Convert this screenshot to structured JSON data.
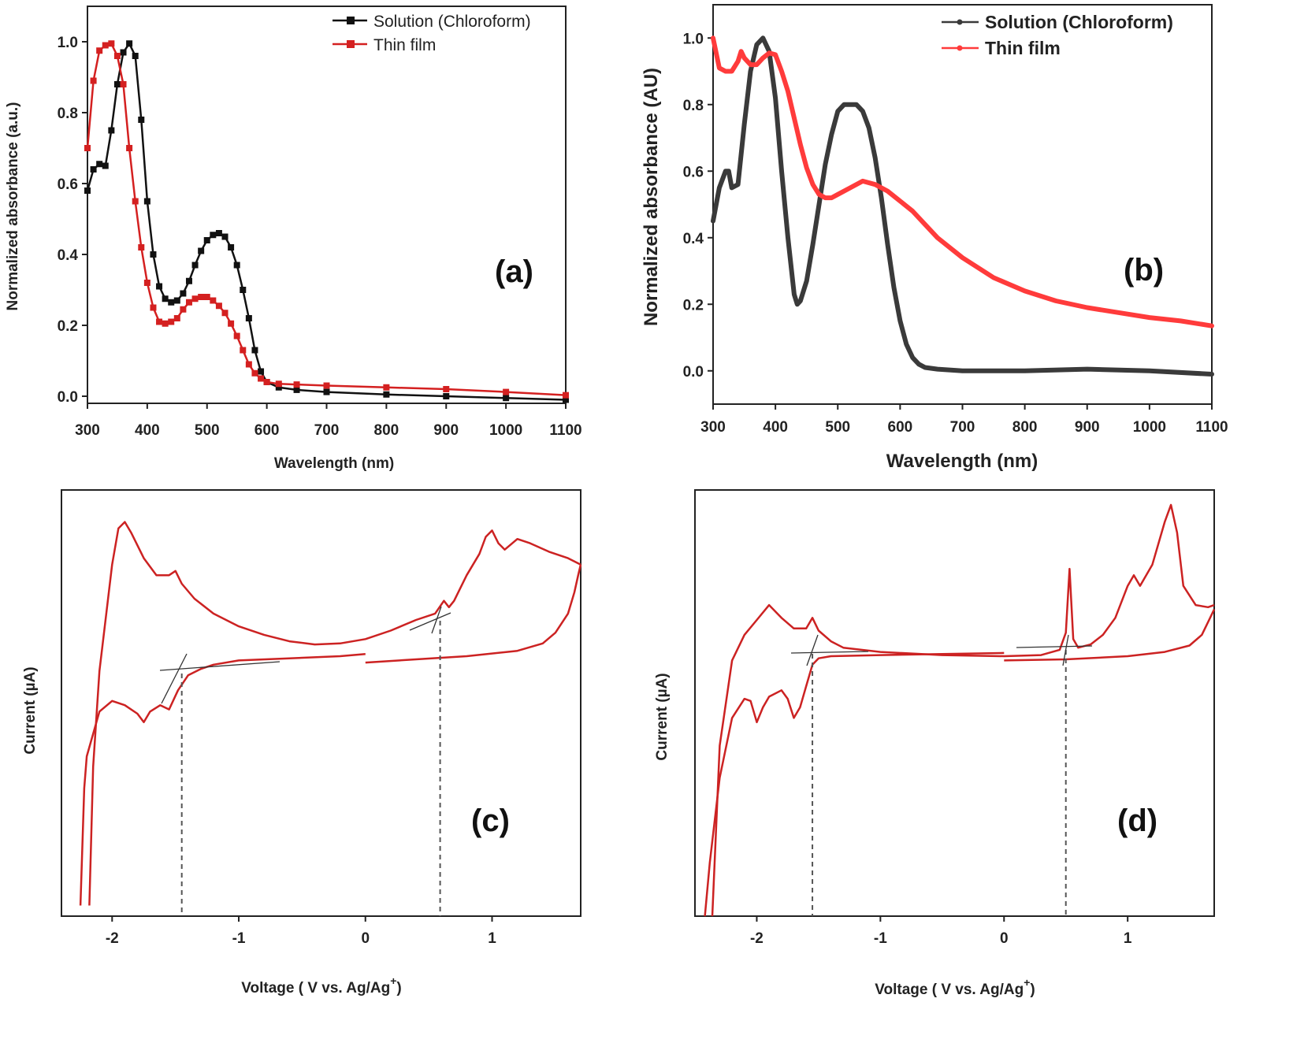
{
  "colors": {
    "solution_a": "#111111",
    "film_a": "#d42020",
    "solution_b": "#3a3a3a",
    "film_b": "#ff3b3b",
    "cv": "#cc2222",
    "tangent": "#333333",
    "dashed": "#555555"
  },
  "chart_data": [
    {
      "id": "a",
      "type": "line",
      "panel_label": "(a)",
      "xlabel": "Wavelength (nm)",
      "ylabel": "Normalized absorbance (a.u.)",
      "xlim": [
        300,
        1100
      ],
      "ylim": [
        -0.02,
        1.1
      ],
      "xticks": [
        300,
        400,
        500,
        600,
        700,
        800,
        900,
        1000,
        1100
      ],
      "yticks": [
        0.0,
        0.2,
        0.4,
        0.6,
        0.8,
        1.0
      ],
      "ytick_labels": [
        "0.0",
        "0.2",
        "0.4",
        "0.6",
        "0.8",
        "1.0"
      ],
      "legend_position": "top-right",
      "series": [
        {
          "name": "Solution (Chloroform)",
          "marker": "square",
          "x": [
            300,
            310,
            320,
            330,
            340,
            350,
            360,
            370,
            380,
            390,
            400,
            410,
            420,
            430,
            440,
            450,
            460,
            470,
            480,
            490,
            500,
            510,
            520,
            530,
            540,
            550,
            560,
            570,
            580,
            590,
            600,
            620,
            650,
            700,
            800,
            900,
            1000,
            1100
          ],
          "y": [
            0.58,
            0.64,
            0.655,
            0.65,
            0.75,
            0.88,
            0.97,
            0.995,
            0.96,
            0.78,
            0.55,
            0.4,
            0.31,
            0.275,
            0.265,
            0.27,
            0.29,
            0.325,
            0.37,
            0.41,
            0.44,
            0.455,
            0.46,
            0.45,
            0.42,
            0.37,
            0.3,
            0.22,
            0.13,
            0.07,
            0.04,
            0.025,
            0.018,
            0.012,
            0.005,
            0.0,
            -0.005,
            -0.01
          ]
        },
        {
          "name": "Thin film",
          "marker": "square",
          "x": [
            300,
            310,
            320,
            330,
            340,
            350,
            360,
            370,
            380,
            390,
            400,
            410,
            420,
            430,
            440,
            450,
            460,
            470,
            480,
            490,
            500,
            510,
            520,
            530,
            540,
            550,
            560,
            570,
            580,
            590,
            600,
            620,
            650,
            700,
            800,
            900,
            1000,
            1100
          ],
          "y": [
            0.7,
            0.89,
            0.975,
            0.99,
            0.995,
            0.96,
            0.88,
            0.7,
            0.55,
            0.42,
            0.32,
            0.25,
            0.21,
            0.205,
            0.21,
            0.22,
            0.245,
            0.265,
            0.275,
            0.28,
            0.28,
            0.27,
            0.255,
            0.235,
            0.205,
            0.17,
            0.13,
            0.09,
            0.065,
            0.05,
            0.04,
            0.035,
            0.033,
            0.03,
            0.025,
            0.02,
            0.012,
            0.003
          ]
        }
      ]
    },
    {
      "id": "b",
      "type": "line",
      "panel_label": "(b)",
      "xlabel": "Wavelength (nm)",
      "ylabel": "Normalized absorbance (AU)",
      "xlim": [
        300,
        1100
      ],
      "ylim": [
        -0.1,
        1.1
      ],
      "xticks": [
        300,
        400,
        500,
        600,
        700,
        800,
        900,
        1000,
        1100
      ],
      "yticks": [
        0.0,
        0.2,
        0.4,
        0.6,
        0.8,
        1.0
      ],
      "ytick_labels": [
        "0.0",
        "0.2",
        "0.4",
        "0.6",
        "0.8",
        "1.0"
      ],
      "legend_position": "top-right",
      "series": [
        {
          "name": "Solution (Chloroform)",
          "x": [
            300,
            310,
            320,
            325,
            330,
            340,
            350,
            360,
            370,
            380,
            390,
            400,
            410,
            420,
            430,
            435,
            440,
            450,
            460,
            470,
            480,
            490,
            500,
            510,
            520,
            530,
            540,
            550,
            560,
            570,
            580,
            590,
            600,
            610,
            620,
            630,
            640,
            660,
            700,
            800,
            900,
            1000,
            1100
          ],
          "y": [
            0.45,
            0.55,
            0.6,
            0.6,
            0.55,
            0.56,
            0.74,
            0.9,
            0.98,
            1.0,
            0.96,
            0.82,
            0.6,
            0.4,
            0.23,
            0.2,
            0.21,
            0.27,
            0.38,
            0.5,
            0.62,
            0.71,
            0.78,
            0.8,
            0.8,
            0.8,
            0.78,
            0.73,
            0.64,
            0.52,
            0.38,
            0.25,
            0.15,
            0.08,
            0.04,
            0.02,
            0.01,
            0.005,
            0.0,
            0.0,
            0.005,
            0.0,
            -0.01
          ]
        },
        {
          "name": "Thin film",
          "x": [
            300,
            310,
            320,
            330,
            340,
            345,
            350,
            360,
            370,
            380,
            390,
            400,
            410,
            420,
            430,
            440,
            450,
            460,
            470,
            480,
            490,
            500,
            520,
            540,
            560,
            580,
            600,
            620,
            640,
            660,
            700,
            750,
            800,
            850,
            900,
            950,
            1000,
            1050,
            1100
          ],
          "y": [
            1.0,
            0.91,
            0.9,
            0.9,
            0.93,
            0.96,
            0.94,
            0.92,
            0.92,
            0.94,
            0.955,
            0.95,
            0.9,
            0.84,
            0.76,
            0.68,
            0.61,
            0.56,
            0.53,
            0.52,
            0.52,
            0.53,
            0.55,
            0.57,
            0.56,
            0.54,
            0.51,
            0.48,
            0.44,
            0.4,
            0.34,
            0.28,
            0.24,
            0.21,
            0.19,
            0.175,
            0.16,
            0.15,
            0.135
          ]
        }
      ]
    },
    {
      "id": "c",
      "type": "line",
      "panel_label": "(c)",
      "xlabel_prefix": "Voltage ( V vs. Ag/Ag",
      "xlabel_sup": "+",
      "xlabel_suffix": ")",
      "ylabel": "Current (µA)",
      "xlim": [
        -2.4,
        1.7
      ],
      "ylim": [
        -10,
        10
      ],
      "xticks": [
        -2,
        -1,
        0,
        1
      ],
      "xtick_labels": [
        "-2",
        "-1",
        "0",
        "1"
      ],
      "onsets": [
        -1.45,
        0.59
      ],
      "series": [
        {
          "name": "",
          "x": [
            -2.18,
            -2.15,
            -2.1,
            -2.0,
            -1.95,
            -1.9,
            -1.85,
            -1.75,
            -1.65,
            -1.55,
            -1.5,
            -1.45,
            -1.35,
            -1.2,
            -1.0,
            -0.8,
            -0.6,
            -0.4,
            -0.2,
            0.0,
            0.2,
            0.4,
            0.55,
            0.62,
            0.66,
            0.7,
            0.8,
            0.9,
            0.95,
            1.0,
            1.05,
            1.1,
            1.2,
            1.3,
            1.45,
            1.6,
            1.7
          ],
          "y": [
            -9.5,
            -3.0,
            1.5,
            6.5,
            8.2,
            8.5,
            8.0,
            6.8,
            6.0,
            6.0,
            6.2,
            5.6,
            4.9,
            4.2,
            3.6,
            3.2,
            2.9,
            2.75,
            2.8,
            3.0,
            3.4,
            3.9,
            4.2,
            4.8,
            4.5,
            4.8,
            6.0,
            7.0,
            7.8,
            8.1,
            7.5,
            7.2,
            7.7,
            7.5,
            7.1,
            6.8,
            6.5
          ]
        },
        {
          "name": "",
          "x": [
            -2.25,
            -2.22,
            -2.2,
            -2.1,
            -2.0,
            -1.9,
            -1.8,
            -1.75,
            -1.7,
            -1.62,
            -1.55,
            -1.48,
            -1.4,
            -1.3,
            -1.2,
            -1.0,
            -0.6,
            -0.2,
            0.0
          ],
          "y": [
            -9.5,
            -4.0,
            -2.5,
            -0.4,
            0.1,
            -0.1,
            -0.5,
            -0.9,
            -0.4,
            -0.1,
            -0.3,
            0.6,
            1.3,
            1.6,
            1.8,
            2.0,
            2.1,
            2.2,
            2.3
          ]
        },
        {
          "name": "",
          "x": [
            0.0,
            0.4,
            0.8,
            1.2,
            1.4,
            1.5,
            1.6,
            1.65,
            1.68,
            1.7
          ],
          "y": [
            1.9,
            2.05,
            2.2,
            2.45,
            2.8,
            3.3,
            4.2,
            5.2,
            6.0,
            6.5
          ]
        }
      ]
    },
    {
      "id": "d",
      "type": "line",
      "panel_label": "(d)",
      "xlabel_prefix": "Voltage ( V vs. Ag/Ag",
      "xlabel_sup": "+",
      "xlabel_suffix": ")",
      "ylabel": "Current (µA)",
      "xlim": [
        -2.5,
        1.7
      ],
      "ylim": [
        -10,
        10
      ],
      "xticks": [
        -2,
        -1,
        0,
        1
      ],
      "xtick_labels": [
        "-2",
        "-1",
        "0",
        "1"
      ],
      "onsets": [
        -1.55,
        0.5
      ],
      "series": [
        {
          "name": "",
          "x": [
            -2.36,
            -2.3,
            -2.2,
            -2.1,
            -2.0,
            -1.9,
            -1.8,
            -1.7,
            -1.6,
            -1.55,
            -1.5,
            -1.4,
            -1.3,
            -1.0,
            -0.5,
            0.0,
            0.3,
            0.45,
            0.5,
            0.53,
            0.56,
            0.6,
            0.7,
            0.8,
            0.9,
            1.0,
            1.05,
            1.1,
            1.2,
            1.3,
            1.35,
            1.4,
            1.45,
            1.55,
            1.65,
            1.7
          ],
          "y": [
            -10.0,
            -2.0,
            2.0,
            3.2,
            3.9,
            4.6,
            4.0,
            3.5,
            3.5,
            4.0,
            3.4,
            2.9,
            2.6,
            2.4,
            2.25,
            2.2,
            2.25,
            2.5,
            3.3,
            6.3,
            3.0,
            2.6,
            2.75,
            3.2,
            4.0,
            5.5,
            6.0,
            5.5,
            6.5,
            8.5,
            9.3,
            8.0,
            5.5,
            4.6,
            4.5,
            4.6
          ]
        },
        {
          "name": "",
          "x": [
            -2.42,
            -2.38,
            -2.3,
            -2.2,
            -2.1,
            -2.05,
            -2.0,
            -1.95,
            -1.9,
            -1.8,
            -1.75,
            -1.7,
            -1.65,
            -1.6,
            -1.55,
            -1.5,
            -1.4,
            -1.0,
            -0.5,
            0.0
          ],
          "y": [
            -10.0,
            -7.5,
            -3.5,
            -0.7,
            0.2,
            0.1,
            -0.9,
            -0.2,
            0.3,
            0.6,
            0.2,
            -0.7,
            -0.2,
            0.8,
            1.8,
            2.1,
            2.2,
            2.25,
            2.3,
            2.35
          ]
        },
        {
          "name": "",
          "x": [
            0.0,
            0.5,
            1.0,
            1.3,
            1.5,
            1.6,
            1.65,
            1.7
          ],
          "y": [
            2.0,
            2.05,
            2.2,
            2.4,
            2.7,
            3.2,
            3.8,
            4.4
          ]
        }
      ]
    }
  ]
}
